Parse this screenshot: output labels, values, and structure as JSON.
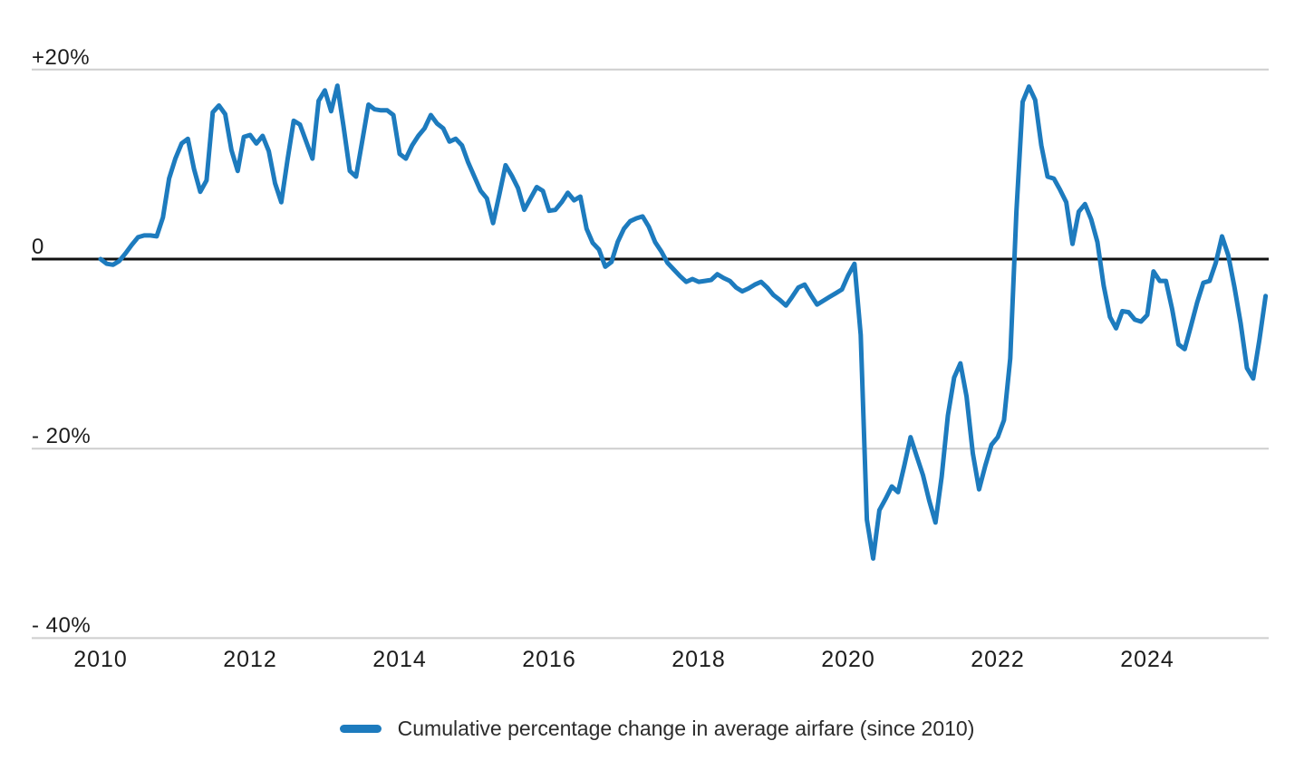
{
  "chart": {
    "y_axis": {
      "labels": [
        "+20%",
        "0",
        "- 20%",
        "- 40%"
      ],
      "values": [
        20,
        0,
        -20,
        -40
      ]
    },
    "x_axis": {
      "labels": [
        "2010",
        "2012",
        "2014",
        "2016",
        "2018",
        "2020",
        "2022",
        "2024"
      ]
    },
    "legend": {
      "label": "Cumulative percentage change in average airfare (since 2010)"
    }
  },
  "colors": {
    "line": "#1d7bbe",
    "gridline": "#cecece",
    "zero_line": "#111111",
    "text": "#1c1c1c"
  },
  "chart_data": {
    "type": "line",
    "title": "",
    "xlabel": "",
    "ylabel": "Cumulative percentage change in average airfare",
    "x_start": "2010-01",
    "x_end": "2025-08",
    "frequency": "monthly",
    "x_tick_years": [
      2010,
      2012,
      2014,
      2016,
      2018,
      2020,
      2022,
      2024
    ],
    "y_ticks": [
      20,
      0,
      -20,
      -40
    ],
    "ylim": [
      -42,
      22
    ],
    "grid": "horizontal-only",
    "zero_baseline": true,
    "legend_position": "bottom-center",
    "series": [
      {
        "name": "Cumulative percentage change in average airfare (since 2010)",
        "color": "#1d7bbe",
        "unit": "%",
        "values": [
          0.0,
          -0.5,
          -0.6,
          -0.2,
          0.6,
          1.5,
          2.3,
          2.5,
          2.5,
          2.4,
          4.4,
          8.5,
          10.6,
          12.2,
          12.7,
          9.5,
          7.1,
          8.3,
          15.5,
          16.2,
          15.3,
          11.5,
          9.3,
          12.9,
          13.1,
          12.2,
          13.0,
          11.4,
          8.0,
          6.0,
          10.5,
          14.6,
          14.2,
          12.4,
          10.6,
          16.7,
          17.8,
          15.6,
          18.3,
          14.0,
          9.3,
          8.7,
          12.5,
          16.3,
          15.8,
          15.7,
          15.7,
          15.2,
          11.1,
          10.6,
          12.0,
          13.0,
          13.8,
          15.2,
          14.3,
          13.8,
          12.4,
          12.7,
          12.0,
          10.2,
          8.7,
          7.2,
          6.4,
          3.8,
          6.8,
          9.9,
          8.8,
          7.5,
          5.2,
          6.4,
          7.6,
          7.2,
          5.1,
          5.2,
          6.0,
          7.0,
          6.2,
          6.6,
          3.2,
          1.7,
          1.0,
          -0.8,
          -0.3,
          1.8,
          3.2,
          4.0,
          4.3,
          4.5,
          3.4,
          1.8,
          0.8,
          -0.4,
          -1.1,
          -1.8,
          -2.4,
          -2.1,
          -2.4,
          -2.3,
          -2.2,
          -1.6,
          -2.0,
          -2.3,
          -3.0,
          -3.4,
          -3.1,
          -2.7,
          -2.4,
          -3.0,
          -3.8,
          -4.3,
          -4.9,
          -4.0,
          -3.0,
          -2.7,
          -3.8,
          -4.8,
          -4.4,
          -4.0,
          -3.6,
          -3.2,
          -1.7,
          -0.5,
          -8.0,
          -27.5,
          -31.6,
          -26.5,
          -25.3,
          -24.0,
          -24.6,
          -21.8,
          -18.8,
          -20.8,
          -22.8,
          -25.5,
          -27.8,
          -23.0,
          -16.5,
          -12.5,
          -11.0,
          -14.5,
          -20.5,
          -24.3,
          -21.8,
          -19.6,
          -18.8,
          -17.0,
          -10.5,
          5.0,
          16.6,
          18.2,
          16.8,
          12.0,
          8.7,
          8.5,
          7.3,
          6.0,
          1.6,
          5.0,
          5.8,
          4.2,
          1.8,
          -2.8,
          -6.1,
          -7.3,
          -5.5,
          -5.6,
          -6.4,
          -6.6,
          -5.9,
          -1.3,
          -2.3,
          -2.3,
          -5.3,
          -9.0,
          -9.5,
          -7.1,
          -4.6,
          -2.5,
          -2.3,
          -0.4,
          2.4,
          0.4,
          -3.0,
          -6.8,
          -11.5,
          -12.6,
          -8.5,
          -3.9
        ]
      }
    ]
  }
}
